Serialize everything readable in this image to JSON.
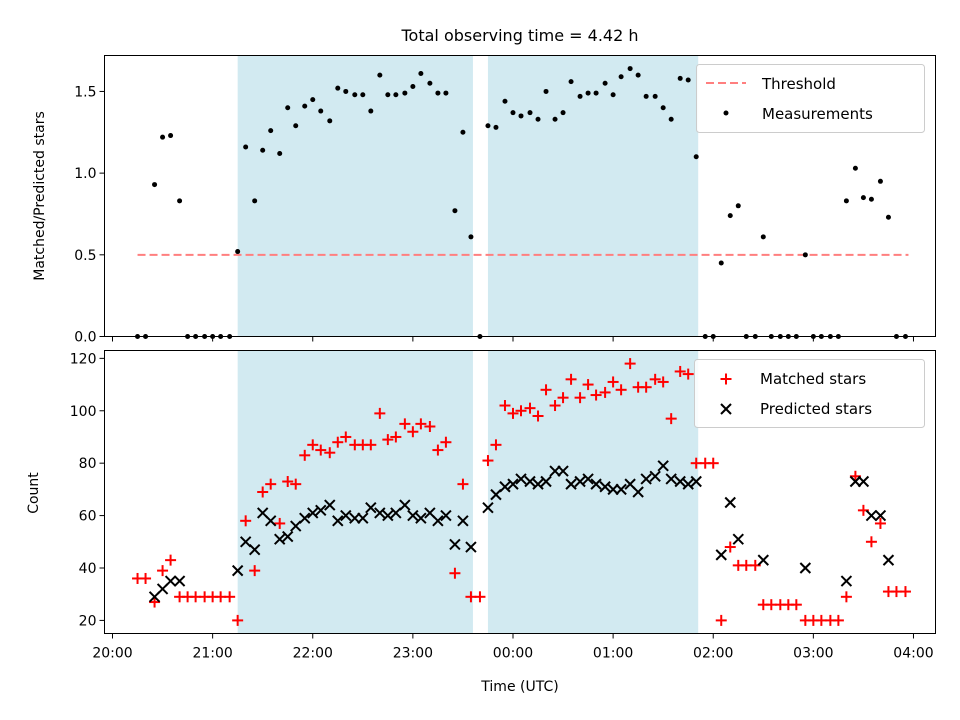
{
  "figure": {
    "title": "Total observing time = 4.42 h"
  },
  "colors": {
    "shade": "#add8e6",
    "threshold": "#ff7f7f",
    "measurement": "#000000",
    "matched": "#ff0000",
    "predicted": "#000000"
  },
  "chart_data": [
    {
      "type": "scatter",
      "ylabel": "Matched/Predicted stars",
      "ylim": [
        0,
        1.72
      ],
      "yticks": [
        0.0,
        0.5,
        1.0,
        1.5
      ],
      "ytick_labels": [
        "0.0",
        "0.5",
        "1.0",
        "1.5"
      ],
      "grid": false,
      "legend": "top-right",
      "shaded_spans": [
        [
          21.25,
          23.6
        ],
        [
          23.75,
          25.85
        ]
      ],
      "threshold": {
        "name": "Threshold",
        "y": 0.5,
        "x": [
          20.25,
          27.95
        ]
      },
      "measurements": {
        "name": "Measurements",
        "x": [
          20.25,
          20.33,
          20.42,
          20.5,
          20.58,
          20.67,
          20.75,
          20.83,
          20.92,
          21.0,
          21.08,
          21.17,
          21.25,
          21.33,
          21.42,
          21.5,
          21.58,
          21.67,
          21.75,
          21.83,
          21.92,
          22.0,
          22.08,
          22.17,
          22.25,
          22.33,
          22.42,
          22.5,
          22.58,
          22.67,
          22.75,
          22.83,
          22.92,
          23.0,
          23.08,
          23.17,
          23.25,
          23.33,
          23.42,
          23.5,
          23.58,
          23.67,
          23.75,
          23.83,
          23.92,
          24.0,
          24.08,
          24.17,
          24.25,
          24.33,
          24.42,
          24.5,
          24.58,
          24.67,
          24.75,
          24.83,
          24.92,
          25.0,
          25.08,
          25.17,
          25.25,
          25.33,
          25.42,
          25.5,
          25.58,
          25.67,
          25.75,
          25.83,
          25.92,
          26.0,
          26.08,
          26.17,
          26.25,
          26.33,
          26.42,
          26.5,
          26.58,
          26.67,
          26.75,
          26.83,
          26.92,
          27.0,
          27.08,
          27.17,
          27.25,
          27.33,
          27.42,
          27.5,
          27.58,
          27.67,
          27.75,
          27.83,
          27.92
        ],
        "y": [
          0,
          0,
          0.93,
          1.22,
          1.23,
          0.83,
          0,
          0,
          0,
          0,
          0,
          0,
          0.52,
          1.16,
          0.83,
          1.14,
          1.26,
          1.12,
          1.4,
          1.29,
          1.41,
          1.45,
          1.38,
          1.32,
          1.52,
          1.5,
          1.48,
          1.48,
          1.38,
          1.6,
          1.48,
          1.48,
          1.49,
          1.53,
          1.61,
          1.55,
          1.49,
          1.49,
          0.77,
          1.25,
          0.61,
          0,
          1.29,
          1.28,
          1.44,
          1.37,
          1.35,
          1.37,
          1.33,
          1.5,
          1.33,
          1.37,
          1.56,
          1.47,
          1.49,
          1.49,
          1.55,
          1.48,
          1.59,
          1.64,
          1.6,
          1.47,
          1.47,
          1.4,
          1.33,
          1.58,
          1.57,
          1.1,
          0,
          0,
          0.45,
          0.74,
          0.8,
          0,
          0,
          0.61,
          0,
          0,
          0,
          0,
          0.5,
          0,
          0,
          0,
          0,
          0.83,
          1.03,
          0.85,
          0.84,
          0.95,
          0.73,
          0,
          0
        ]
      }
    },
    {
      "type": "scatter",
      "xlabel": "Time (UTC)",
      "ylabel": "Count",
      "xlim": [
        19.92,
        28.22
      ],
      "ylim": [
        15,
        123
      ],
      "yticks": [
        20,
        40,
        60,
        80,
        100,
        120
      ],
      "ytick_labels": [
        "20",
        "40",
        "60",
        "80",
        "100",
        "120"
      ],
      "xticks": [
        20,
        21,
        22,
        23,
        24,
        25,
        26,
        27,
        28
      ],
      "xtick_labels": [
        "20:00",
        "21:00",
        "22:00",
        "23:00",
        "00:00",
        "01:00",
        "02:00",
        "03:00",
        "04:00"
      ],
      "grid": false,
      "legend": "top-right",
      "shaded_spans": [
        [
          21.25,
          23.6
        ],
        [
          23.75,
          25.85
        ]
      ],
      "series": [
        {
          "name": "Matched stars",
          "marker": "+",
          "x": [
            20.25,
            20.33,
            20.42,
            20.5,
            20.58,
            20.67,
            20.75,
            20.83,
            20.92,
            21.0,
            21.08,
            21.17,
            21.25,
            21.33,
            21.42,
            21.5,
            21.58,
            21.67,
            21.75,
            21.83,
            21.92,
            22.0,
            22.08,
            22.17,
            22.25,
            22.33,
            22.42,
            22.5,
            22.58,
            22.67,
            22.75,
            22.83,
            22.92,
            23.0,
            23.08,
            23.17,
            23.25,
            23.33,
            23.42,
            23.5,
            23.58,
            23.67,
            23.75,
            23.83,
            23.92,
            24.0,
            24.08,
            24.17,
            24.25,
            24.33,
            24.42,
            24.5,
            24.58,
            24.67,
            24.75,
            24.83,
            24.92,
            25.0,
            25.08,
            25.17,
            25.25,
            25.33,
            25.42,
            25.5,
            25.58,
            25.67,
            25.75,
            25.83,
            25.92,
            26.0,
            26.08,
            26.17,
            26.25,
            26.33,
            26.42,
            26.5,
            26.58,
            26.67,
            26.75,
            26.83,
            26.92,
            27.0,
            27.08,
            27.17,
            27.25,
            27.33,
            27.42,
            27.5,
            27.58,
            27.67,
            27.75,
            27.83,
            27.92
          ],
          "y": [
            36,
            36,
            27,
            39,
            43,
            29,
            29,
            29,
            29,
            29,
            29,
            29,
            20,
            58,
            39,
            69,
            72,
            57,
            73,
            72,
            83,
            87,
            85,
            84,
            88,
            90,
            87,
            87,
            87,
            99,
            89,
            90,
            95,
            92,
            95,
            94,
            85,
            88,
            38,
            72,
            29,
            29,
            81,
            87,
            102,
            99,
            100,
            101,
            98,
            108,
            102,
            105,
            112,
            105,
            110,
            106,
            107,
            111,
            108,
            118,
            109,
            109,
            112,
            111,
            97,
            115,
            114,
            80,
            80,
            80,
            20,
            48,
            41,
            41,
            41,
            26,
            26,
            26,
            26,
            26,
            20,
            20,
            20,
            20,
            20,
            29,
            75,
            62,
            50,
            57,
            31,
            31,
            31
          ]
        },
        {
          "name": "Predicted stars",
          "marker": "x",
          "x": [
            20.42,
            20.5,
            20.58,
            20.67,
            21.25,
            21.33,
            21.42,
            21.5,
            21.58,
            21.67,
            21.75,
            21.83,
            21.92,
            22.0,
            22.08,
            22.17,
            22.25,
            22.33,
            22.42,
            22.5,
            22.58,
            22.67,
            22.75,
            22.83,
            22.92,
            23.0,
            23.08,
            23.17,
            23.25,
            23.33,
            23.42,
            23.5,
            23.58,
            23.75,
            23.83,
            23.92,
            24.0,
            24.08,
            24.17,
            24.25,
            24.33,
            24.42,
            24.5,
            24.58,
            24.67,
            24.75,
            24.83,
            24.92,
            25.0,
            25.08,
            25.17,
            25.25,
            25.33,
            25.42,
            25.5,
            25.58,
            25.67,
            25.75,
            25.83,
            26.08,
            26.17,
            26.25,
            26.5,
            26.92,
            27.33,
            27.42,
            27.5,
            27.58,
            27.67,
            27.75
          ],
          "y": [
            29,
            32,
            35,
            35,
            39,
            50,
            47,
            61,
            58,
            51,
            52,
            56,
            59,
            61,
            62,
            64,
            58,
            60,
            59,
            59,
            63,
            61,
            60,
            61,
            64,
            60,
            59,
            61,
            58,
            60,
            49,
            58,
            48,
            63,
            68,
            71,
            72,
            74,
            73,
            72,
            73,
            77,
            77,
            72,
            73,
            74,
            72,
            71,
            70,
            70,
            72,
            69,
            74,
            75,
            79,
            74,
            73,
            72,
            73,
            45,
            65,
            51,
            43,
            40,
            35,
            73,
            73,
            60,
            60,
            43
          ]
        }
      ]
    }
  ]
}
